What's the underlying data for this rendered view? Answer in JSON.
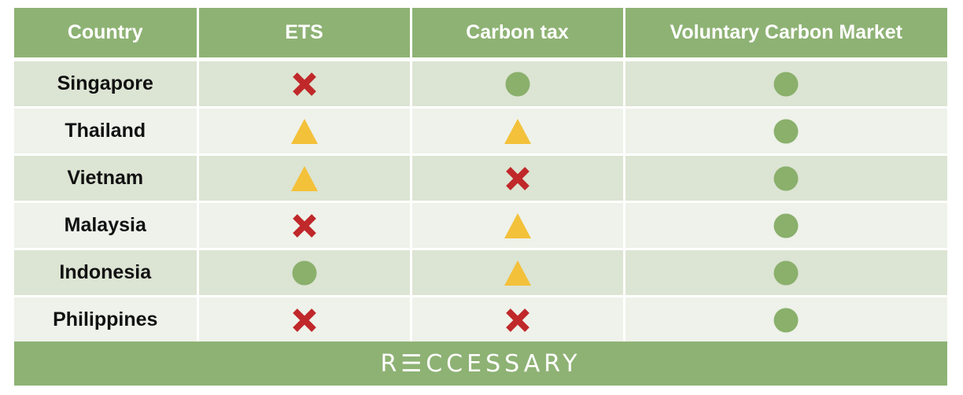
{
  "table": {
    "headers": [
      "Country",
      "ETS",
      "Carbon tax",
      "Voluntary Carbon Market"
    ],
    "rows": [
      {
        "country": "Singapore",
        "ets": "cross",
        "carbon_tax": "circle",
        "voluntary": "circle"
      },
      {
        "country": "Thailand",
        "ets": "triangle",
        "carbon_tax": "triangle",
        "voluntary": "circle"
      },
      {
        "country": "Vietnam",
        "ets": "triangle",
        "carbon_tax": "cross",
        "voluntary": "circle"
      },
      {
        "country": "Malaysia",
        "ets": "cross",
        "carbon_tax": "triangle",
        "voluntary": "circle"
      },
      {
        "country": "Indonesia",
        "ets": "circle",
        "carbon_tax": "triangle",
        "voluntary": "circle"
      },
      {
        "country": "Philippines",
        "ets": "cross",
        "carbon_tax": "cross",
        "voluntary": "circle"
      }
    ]
  },
  "symbols": {
    "circle": {
      "icon": "green-circle-icon",
      "color": "#8ab06c"
    },
    "triangle": {
      "icon": "yellow-triangle-icon",
      "color": "#f3c13a"
    },
    "cross": {
      "icon": "red-cross-icon",
      "color": "#c0282a"
    }
  },
  "colors": {
    "header_bg": "#8eb274",
    "row_odd": "#dce4d3",
    "row_even": "#eef2ea"
  },
  "footer": {
    "brand": "R☰CCESSARY"
  }
}
